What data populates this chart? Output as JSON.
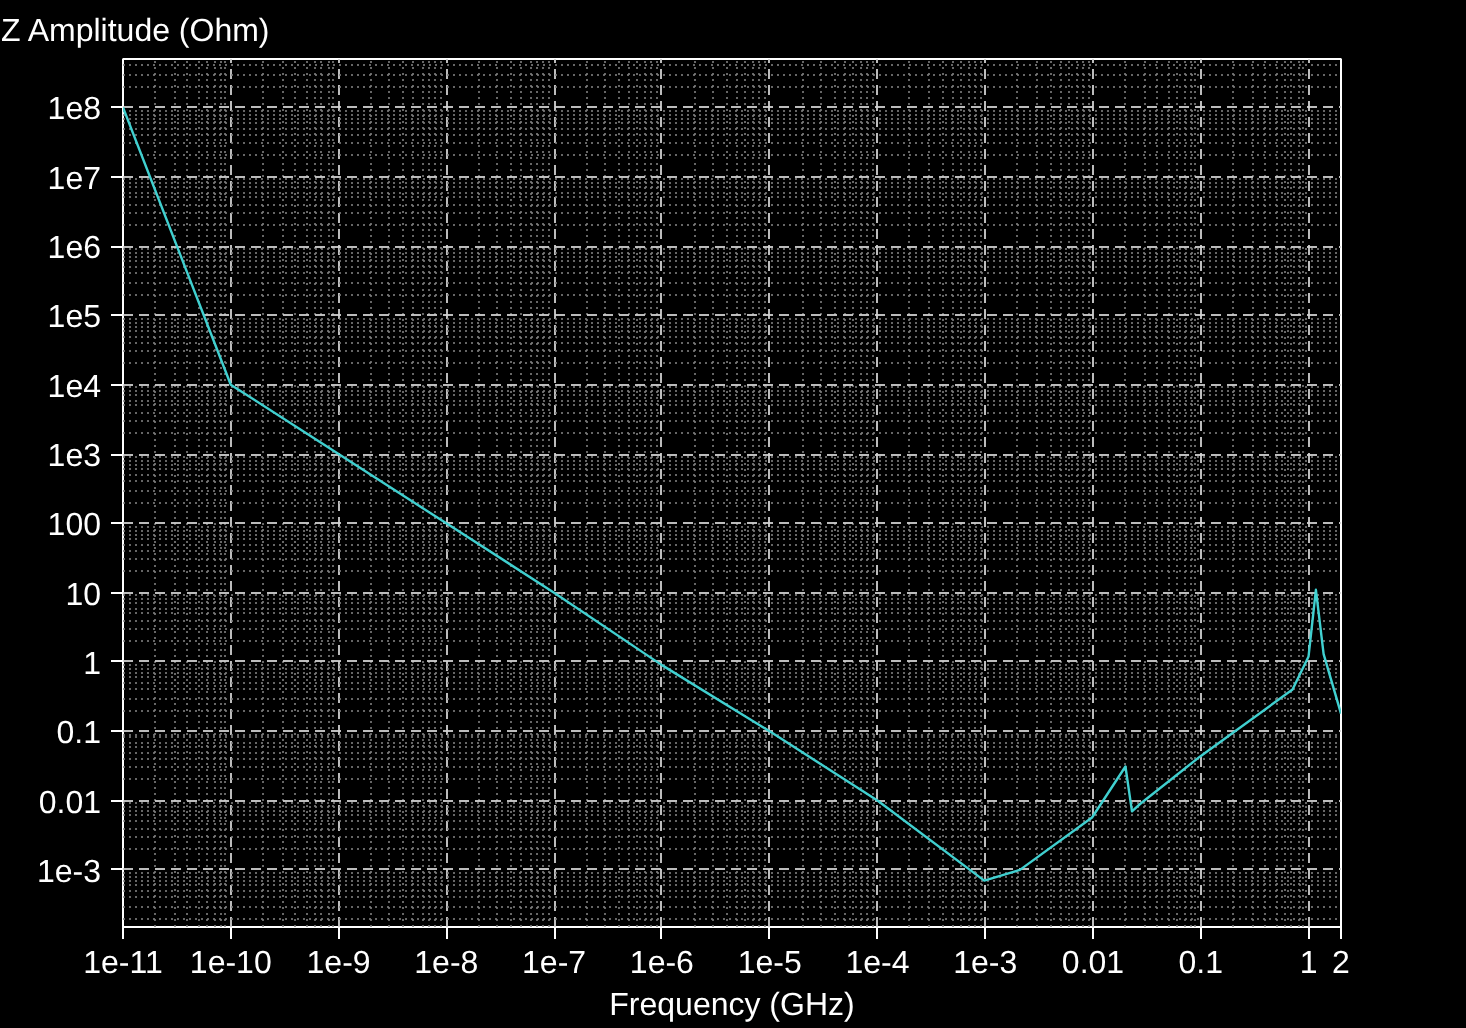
{
  "chart_data": {
    "type": "line",
    "title": "Z Amplitude (Ohm)",
    "xlabel": "Frequency (GHz)",
    "log": "xy",
    "grid": true,
    "marker": "none",
    "line_style": "solid",
    "xlim": [
      1e-11,
      2
    ],
    "ylim": [
      0.00015,
      500000000
    ],
    "xticks": [
      {
        "value": 1e-11,
        "label": "1e-11"
      },
      {
        "value": 1e-10,
        "label": "1e-10"
      },
      {
        "value": 1e-09,
        "label": "1e-9"
      },
      {
        "value": 1e-08,
        "label": "1e-8"
      },
      {
        "value": 1e-07,
        "label": "1e-7"
      },
      {
        "value": 1e-06,
        "label": "1e-6"
      },
      {
        "value": 1e-05,
        "label": "1e-5"
      },
      {
        "value": 0.0001,
        "label": "1e-4"
      },
      {
        "value": 0.001,
        "label": "1e-3"
      },
      0.01,
      0.1,
      1,
      2
    ],
    "yticks": [
      {
        "value": 100000000,
        "label": "1e8"
      },
      {
        "value": 10000000,
        "label": "1e7"
      },
      {
        "value": 1000000,
        "label": "1e6"
      },
      {
        "value": 100000,
        "label": "1e5"
      },
      {
        "value": 10000,
        "label": "1e4"
      },
      {
        "value": 1000,
        "label": "1e3"
      },
      100,
      10,
      1,
      0.1,
      0.01,
      {
        "value": 0.001,
        "label": "1e-3"
      }
    ],
    "series": [
      {
        "color": "#40d0d0",
        "x": [
          1e-11,
          1e-10,
          1e-09,
          1e-08,
          1e-07,
          1e-06,
          1e-05,
          0.0001,
          0.00098,
          0.0021,
          0.0098,
          0.02,
          0.023,
          0.0275,
          0.098,
          0.71,
          1.0,
          1.17,
          1.38,
          2
        ],
        "values": [
          100000000,
          10000,
          1000,
          100,
          10,
          0.9,
          0.1,
          0.01,
          0.0007,
          0.001,
          0.0057,
          0.031,
          0.007,
          0.009,
          0.043,
          0.4,
          1.2,
          11,
          1.3,
          0.18
        ]
      }
    ]
  }
}
